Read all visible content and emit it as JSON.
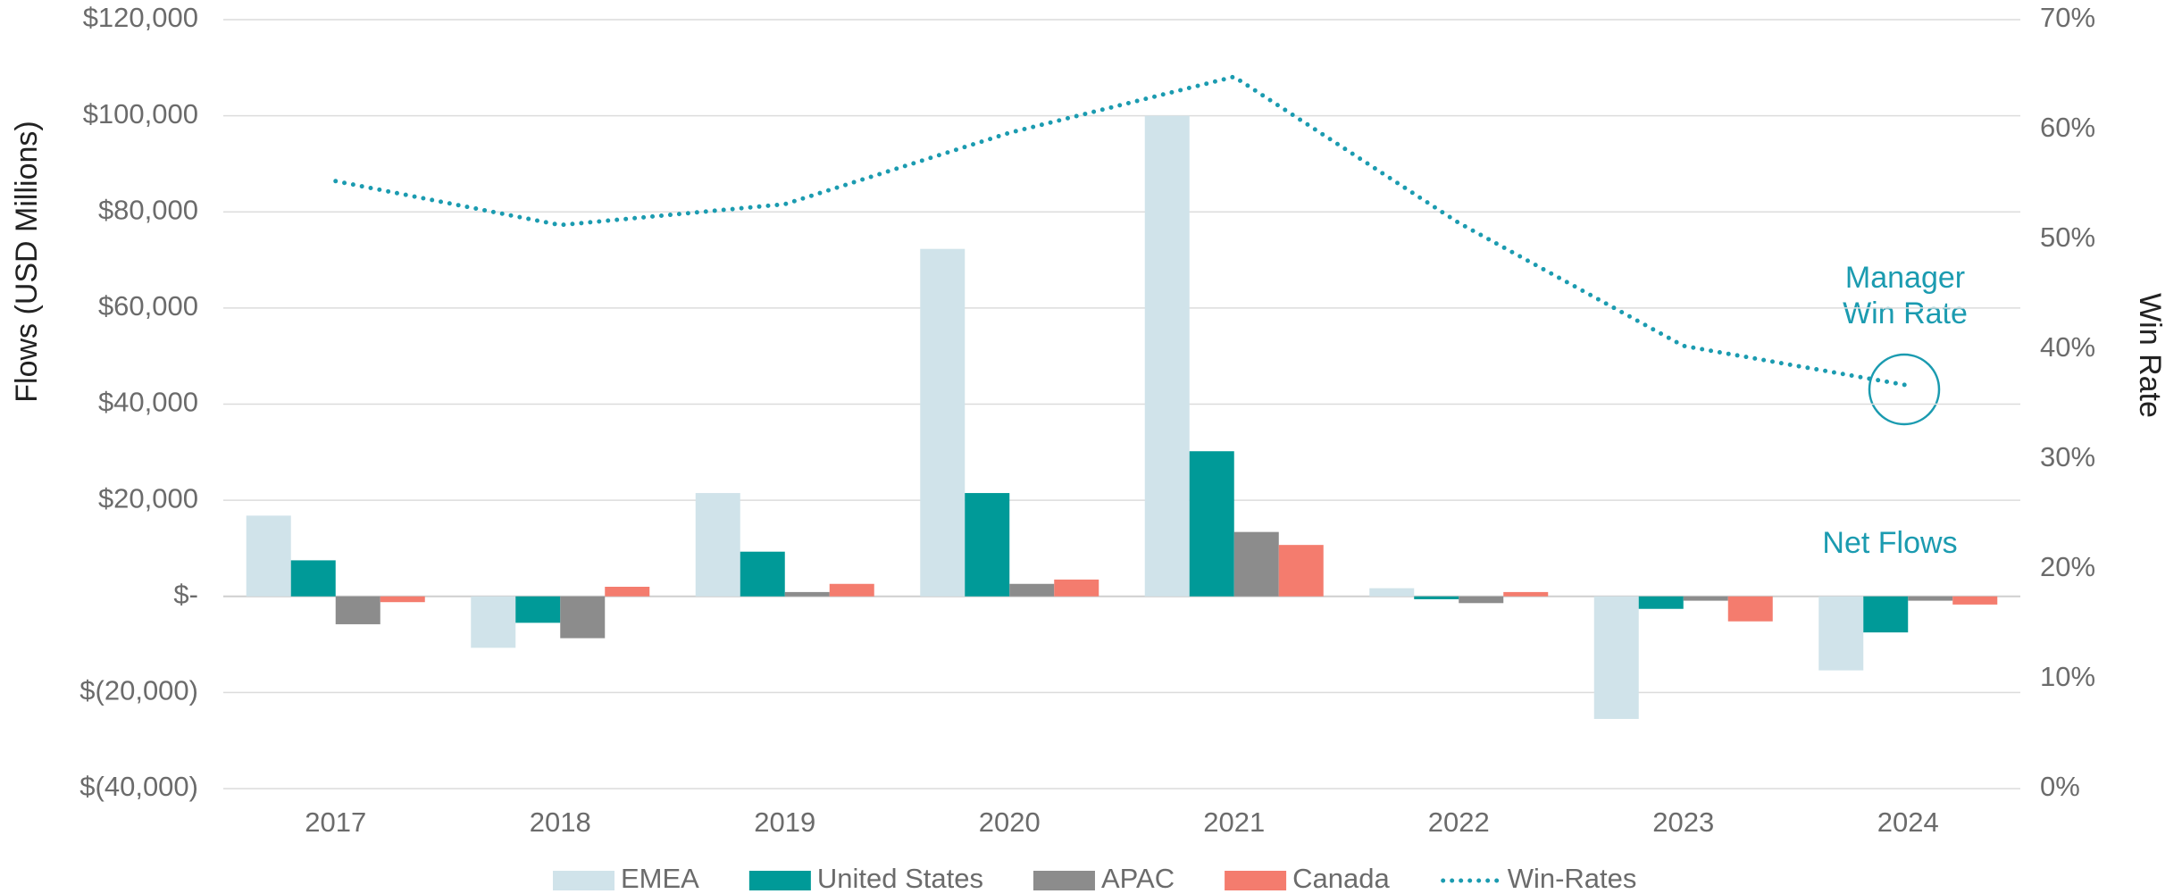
{
  "chart_data": {
    "type": "bar",
    "y_axis_label": "Flows (USD Millions)",
    "y2_axis_label": "Win Rate",
    "categories": [
      "2017",
      "2018",
      "2019",
      "2020",
      "2021",
      "2022",
      "2023",
      "2024"
    ],
    "series": [
      {
        "name": "EMEA",
        "color": "#d0e3ea",
        "values": [
          16800,
          -10700,
          21500,
          72300,
          100000,
          1700,
          -25500,
          -15400
        ]
      },
      {
        "name": "United States",
        "color": "#009a98",
        "values": [
          7500,
          -5500,
          9300,
          21500,
          30200,
          -600,
          -2600,
          -7500
        ]
      },
      {
        "name": "APAC",
        "color": "#8c8c8c",
        "values": [
          -5800,
          -8700,
          900,
          2600,
          13400,
          -1400,
          -900,
          -900
        ]
      },
      {
        "name": "Canada",
        "color": "#f47c6e",
        "values": [
          -1200,
          2000,
          2600,
          3500,
          10700,
          900,
          -5200,
          -1700
        ]
      },
      {
        "name": "Win-Rates",
        "color": "#1b9bb0",
        "type": "line",
        "style": "dotted",
        "axis": "y2",
        "values": [
          55.3,
          51.3,
          53.2,
          59.7,
          64.8,
          51.5,
          40.3,
          36.7
        ]
      }
    ],
    "ylim": [
      -40000,
      120000
    ],
    "yticks": [
      {
        "value": -40000,
        "label": "$(40,000)"
      },
      {
        "value": -20000,
        "label": "$(20,000)"
      },
      {
        "value": 0,
        "label": "$-"
      },
      {
        "value": 20000,
        "label": "$20,000"
      },
      {
        "value": 40000,
        "label": "$40,000"
      },
      {
        "value": 60000,
        "label": "$60,000"
      },
      {
        "value": 80000,
        "label": "$80,000"
      },
      {
        "value": 100000,
        "label": "$100,000"
      },
      {
        "value": 120000,
        "label": "$120,000"
      }
    ],
    "y2lim": [
      0,
      70
    ],
    "y2ticks": [
      {
        "value": 0,
        "label": "0%"
      },
      {
        "value": 10,
        "label": "10%"
      },
      {
        "value": 20,
        "label": "20%"
      },
      {
        "value": 30,
        "label": "30%"
      },
      {
        "value": 40,
        "label": "40%"
      },
      {
        "value": 50,
        "label": "50%"
      },
      {
        "value": 60,
        "label": "60%"
      },
      {
        "value": 70,
        "label": "70%"
      }
    ],
    "grid": true,
    "legend": "bottom",
    "win_rate_annotation": [
      "Manager",
      "Win Rate"
    ],
    "net_flows_annotation": "Net Flows"
  }
}
